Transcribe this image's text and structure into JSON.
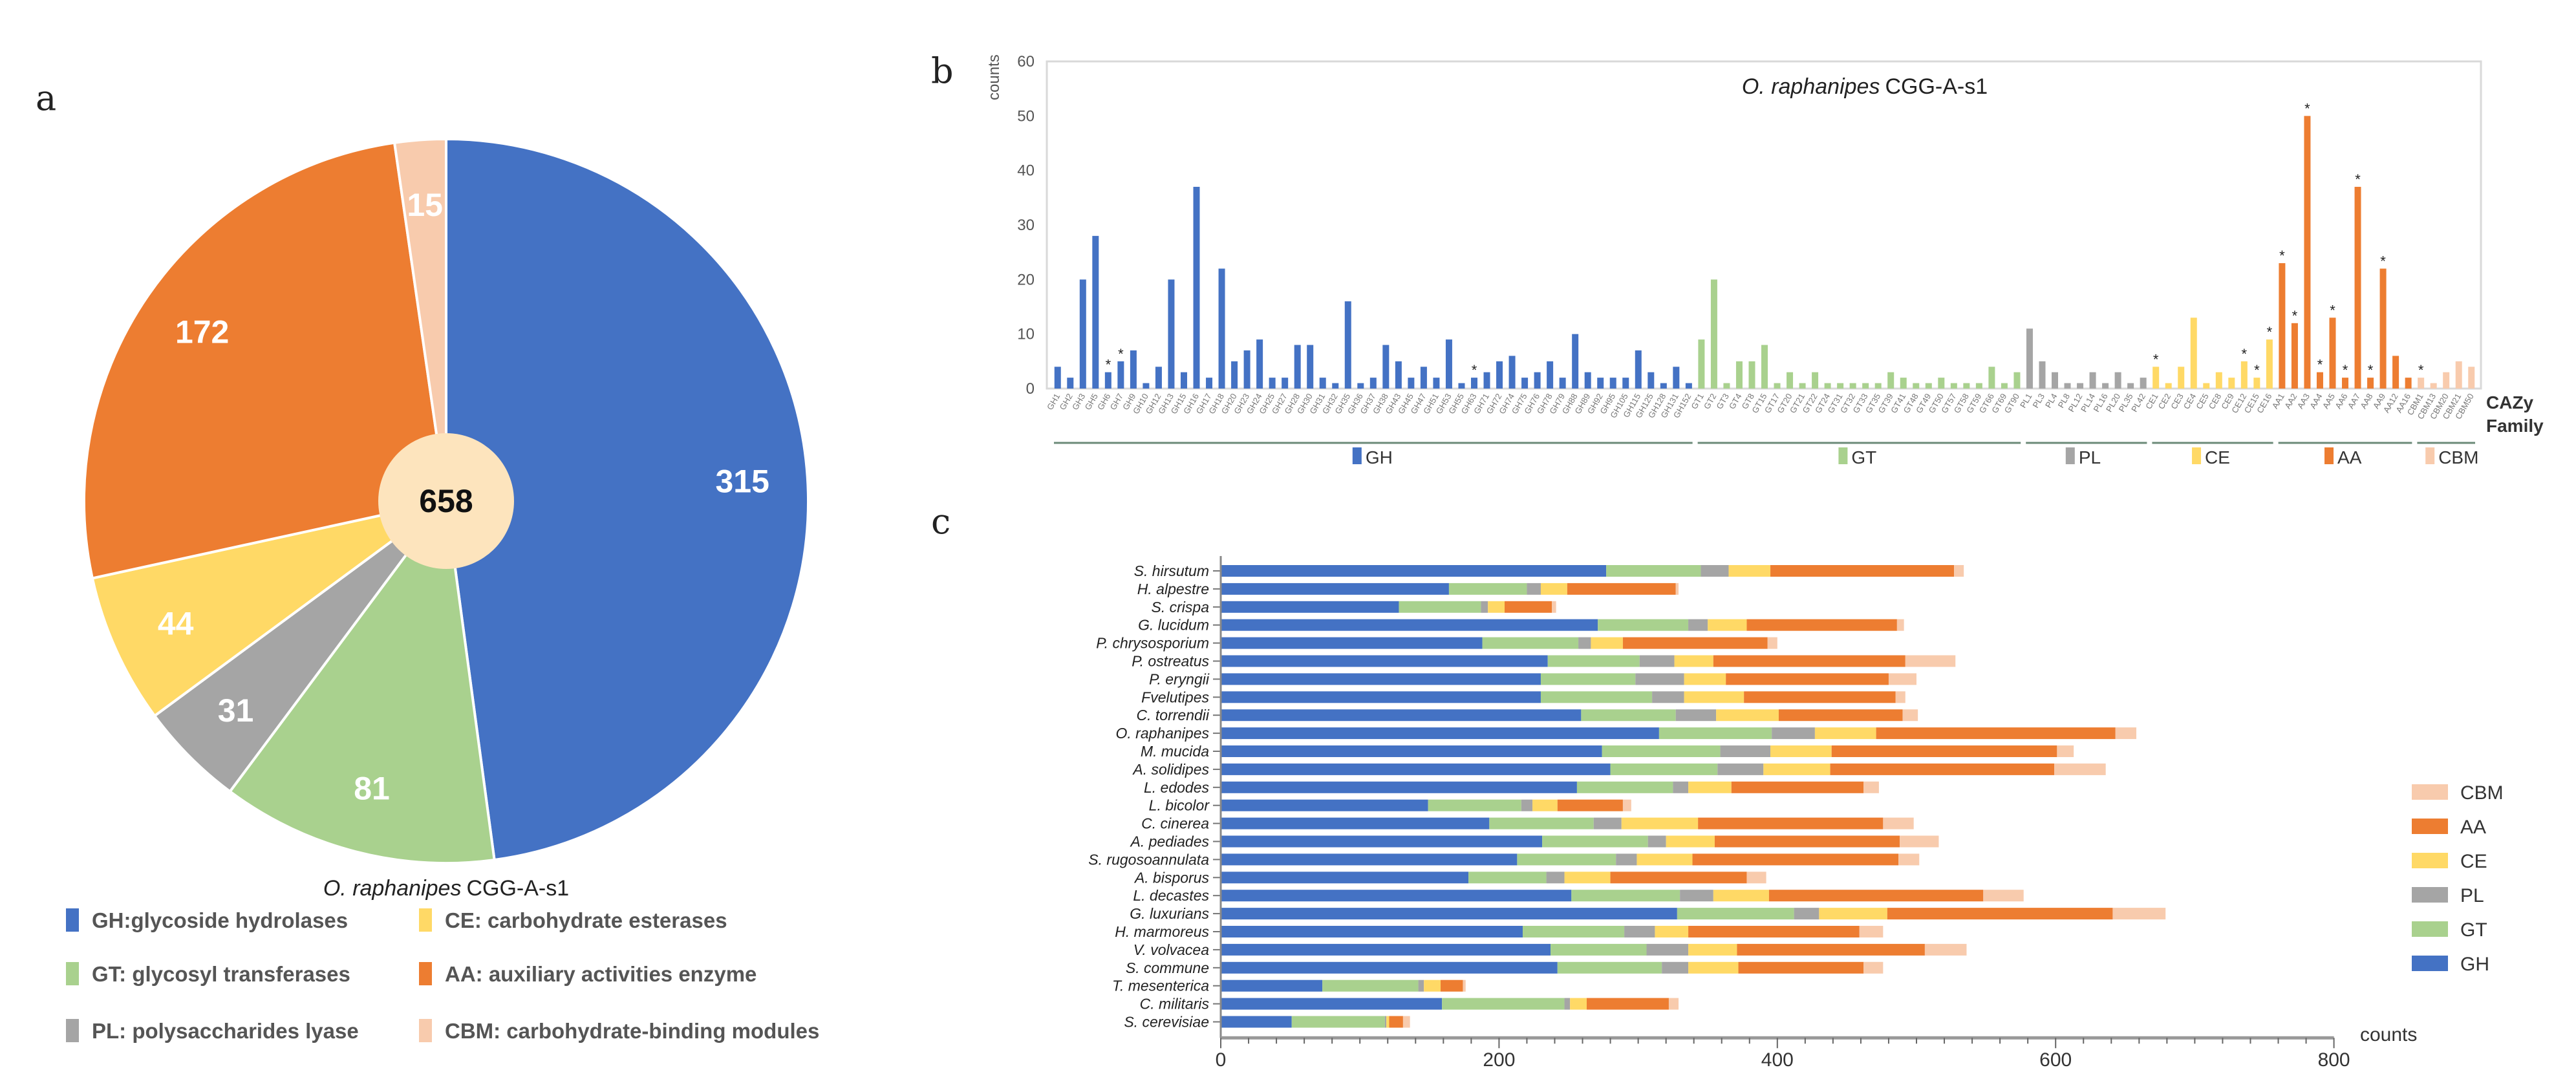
{
  "panel_labels": {
    "a": "a",
    "b": "b",
    "c": "c"
  },
  "colors": {
    "GH": "#4472c4",
    "GT": "#a9d18e",
    "PL": "#a5a5a5",
    "CE": "#ffd966",
    "AA": "#ed7d31",
    "CBM": "#f8cbad",
    "hub": "#fde4bd",
    "highlight": "#e8372c"
  },
  "chart_data": [
    {
      "type": "pie",
      "title": {
        "species": "O. raphanipes",
        "strain": "CGG-A-s1"
      },
      "total": "658",
      "categories": [
        "GH",
        "GT",
        "PL",
        "CE",
        "AA",
        "CBM"
      ],
      "values": [
        315,
        81,
        31,
        44,
        172,
        15
      ],
      "legend": [
        "GH:glycoside hydrolases",
        "GT: glycosyl transferases",
        "PL: polysaccharides lyase",
        "CE: carbohydrate esterases",
        "AA: auxiliary activities enzyme",
        "CBM: carbohydrate-binding modules"
      ]
    },
    {
      "type": "bar",
      "title": {
        "species": "O. raphanipes",
        "strain": "CGG-A-s1"
      },
      "ylabel": "counts",
      "xlabel": [
        "CAZy",
        "Family"
      ],
      "ylim": [
        0,
        60
      ],
      "yticks": [
        0,
        10,
        20,
        30,
        40,
        50,
        60
      ],
      "groups": [
        {
          "name": "GH",
          "labels": [
            "GH1",
            "GH2",
            "GH3",
            "GH5",
            "GH6",
            "GH7",
            "GH9",
            "GH10",
            "GH12",
            "GH13",
            "GH15",
            "GH16",
            "GH17",
            "GH18",
            "GH20",
            "GH23",
            "GH24",
            "GH25",
            "GH27",
            "GH28",
            "GH30",
            "GH31",
            "GH32",
            "GH35",
            "GH36",
            "GH37",
            "GH38",
            "GH43",
            "GH45",
            "GH47",
            "GH51",
            "GH53",
            "GH55",
            "GH63",
            "GH71",
            "GH72",
            "GH74",
            "GH75",
            "GH76",
            "GH78",
            "GH79",
            "GH88",
            "GH89",
            "GH92",
            "GH95",
            "GH105",
            "GH115",
            "GH125",
            "GH128",
            "GH131",
            "GH152"
          ],
          "values": [
            4,
            2,
            20,
            28,
            3,
            5,
            7,
            1,
            4,
            20,
            3,
            37,
            2,
            22,
            5,
            7,
            9,
            2,
            2,
            8,
            8,
            2,
            1,
            16,
            1,
            2,
            8,
            5,
            2,
            4,
            2,
            9,
            1,
            2,
            3,
            5,
            6,
            2,
            3,
            5,
            2,
            10,
            3,
            2,
            2,
            2,
            7,
            3,
            1,
            4,
            1
          ],
          "starred": [
            4,
            5,
            33
          ]
        },
        {
          "name": "GT",
          "labels": [
            "GT1",
            "GT2",
            "GT3",
            "GT4",
            "GT8",
            "GT15",
            "GT17",
            "GT20",
            "GT21",
            "GT22",
            "GT24",
            "GT31",
            "GT32",
            "GT33",
            "GT35",
            "GT39",
            "GT41",
            "GT48",
            "GT49",
            "GT50",
            "GT57",
            "GT58",
            "GT59",
            "GT66",
            "GT69",
            "GT90"
          ],
          "values": [
            9,
            20,
            1,
            5,
            5,
            8,
            1,
            3,
            1,
            3,
            1,
            1,
            1,
            1,
            1,
            3,
            2,
            1,
            1,
            2,
            1,
            1,
            1,
            4,
            1,
            3
          ],
          "starred": []
        },
        {
          "name": "PL",
          "labels": [
            "PL1",
            "PL3",
            "PL4",
            "PL8",
            "PL12",
            "PL14",
            "PL16",
            "PL20",
            "PL35",
            "PL42"
          ],
          "values": [
            11,
            5,
            3,
            1,
            1,
            3,
            1,
            3,
            1,
            2
          ],
          "starred": []
        },
        {
          "name": "CE",
          "labels": [
            "CE1",
            "CE2",
            "CE3",
            "CE4",
            "CE5",
            "CE8",
            "CE9",
            "CE12",
            "CE15",
            "CE16"
          ],
          "values": [
            4,
            1,
            4,
            13,
            1,
            3,
            2,
            5,
            2,
            9
          ],
          "starred": [
            0,
            7,
            8,
            9
          ]
        },
        {
          "name": "AA",
          "labels": [
            "AA1",
            "AA2",
            "AA3",
            "AA4",
            "AA5",
            "AA6",
            "AA7",
            "AA8",
            "AA9",
            "AA12",
            "AA16"
          ],
          "values": [
            23,
            12,
            50,
            3,
            13,
            2,
            37,
            2,
            22,
            6,
            2
          ],
          "starred": [
            0,
            1,
            2,
            3,
            4,
            5,
            6,
            7,
            8
          ]
        },
        {
          "name": "CBM",
          "labels": [
            "CBM1",
            "CBM13",
            "CBM20",
            "CBM21",
            "CBM50"
          ],
          "values": [
            2,
            1,
            3,
            5,
            4
          ],
          "starred": [
            0
          ]
        }
      ]
    },
    {
      "type": "bar",
      "orientation": "horizontal-stacked",
      "xlabel": "counts",
      "xlim": [
        0,
        800
      ],
      "xticks": [
        0,
        200,
        400,
        600,
        800
      ],
      "series_names": [
        "GH",
        "GT",
        "PL",
        "CE",
        "AA",
        "CBM"
      ],
      "legend": [
        "CBM",
        "AA",
        "CE",
        "PL",
        "GT",
        "GH"
      ],
      "highlight": "O. raphanipes",
      "categories": [
        "S. hirsutum",
        "H. alpestre",
        "S. crispa",
        "G. lucidum",
        "P. chrysosporium",
        "P. ostreatus",
        "P. eryngii",
        "Fvelutipes",
        "C. torrendii",
        "O. raphanipes",
        "M. mucida",
        "A. solidipes",
        "L. edodes",
        "L. bicolor",
        "C. cinerea",
        "A. pediades",
        "S. rugosoannulata",
        "A. bisporus",
        "L. decastes",
        "G. luxurians",
        "H. marmoreus",
        "V. volvacea",
        "S. commune",
        "T. mesenterica",
        "C. militaris",
        "S. cerevisiae"
      ],
      "values": [
        [
          277,
          68,
          20,
          30,
          132,
          7
        ],
        [
          164,
          56,
          10,
          19,
          78,
          2
        ],
        [
          128,
          59,
          5,
          12,
          34,
          3
        ],
        [
          271,
          65,
          14,
          28,
          108,
          5
        ],
        [
          188,
          69,
          9,
          23,
          104,
          7
        ],
        [
          235,
          66,
          25,
          28,
          138,
          36
        ],
        [
          230,
          68,
          35,
          30,
          117,
          20
        ],
        [
          230,
          80,
          23,
          43,
          109,
          7
        ],
        [
          259,
          68,
          29,
          45,
          89,
          11
        ],
        [
          315,
          81,
          31,
          44,
          172,
          15
        ],
        [
          274,
          85,
          36,
          44,
          162,
          12
        ],
        [
          280,
          77,
          33,
          48,
          161,
          37
        ],
        [
          256,
          69,
          11,
          31,
          95,
          11
        ],
        [
          149,
          67,
          8,
          18,
          47,
          6
        ],
        [
          193,
          75,
          20,
          55,
          133,
          22
        ],
        [
          231,
          76,
          13,
          35,
          133,
          28
        ],
        [
          213,
          71,
          15,
          40,
          148,
          15
        ],
        [
          178,
          56,
          13,
          33,
          98,
          14
        ],
        [
          252,
          78,
          24,
          40,
          154,
          29
        ],
        [
          328,
          84,
          18,
          49,
          162,
          38
        ],
        [
          217,
          73,
          22,
          24,
          123,
          17
        ],
        [
          237,
          69,
          30,
          35,
          135,
          30
        ],
        [
          242,
          75,
          19,
          36,
          90,
          14
        ],
        [
          73,
          69,
          4,
          12,
          16,
          2
        ],
        [
          159,
          88,
          4,
          12,
          59,
          7
        ],
        [
          51,
          67,
          1,
          2,
          10,
          5
        ]
      ]
    }
  ]
}
